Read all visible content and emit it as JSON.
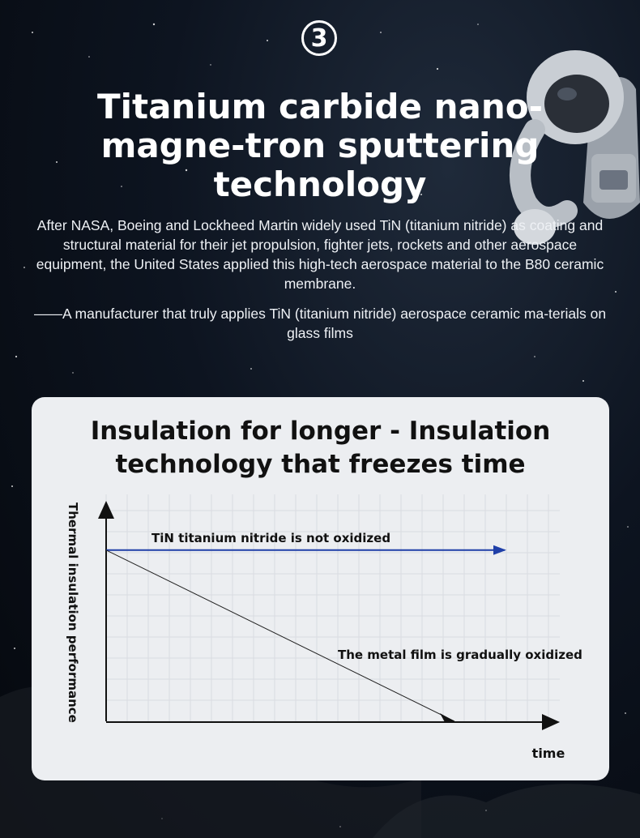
{
  "step_number": "3",
  "title": "Titanium carbide nano-magne-tron sputtering technology",
  "intro_text": "After NASA, Boeing and Lockheed Martin widely used TiN (titanium nitride) as coating and structural material for their jet propulsion, fighter jets, rockets and other aerospace equipment, the United States applied this high-tech aerospace material to the B80 ceramic membrane.",
  "quote_text": "——A manufacturer that truly applies TiN (titanium nitride) aerospace ceramic ma-terials on glass films",
  "card": {
    "title": "Insulation for longer - Insulation technology that freezes time"
  },
  "chart_data": {
    "type": "line",
    "xlabel": "time",
    "ylabel": "Thermal insulation performance",
    "series": [
      {
        "label": "TiN titanium nitride is not oxidized",
        "color": "#1f3fa8",
        "start": 0.8,
        "end": 0.8
      },
      {
        "label": "The metal film is gradually oxidized",
        "color": "#222222",
        "start": 0.8,
        "end": 0.0
      }
    ]
  }
}
